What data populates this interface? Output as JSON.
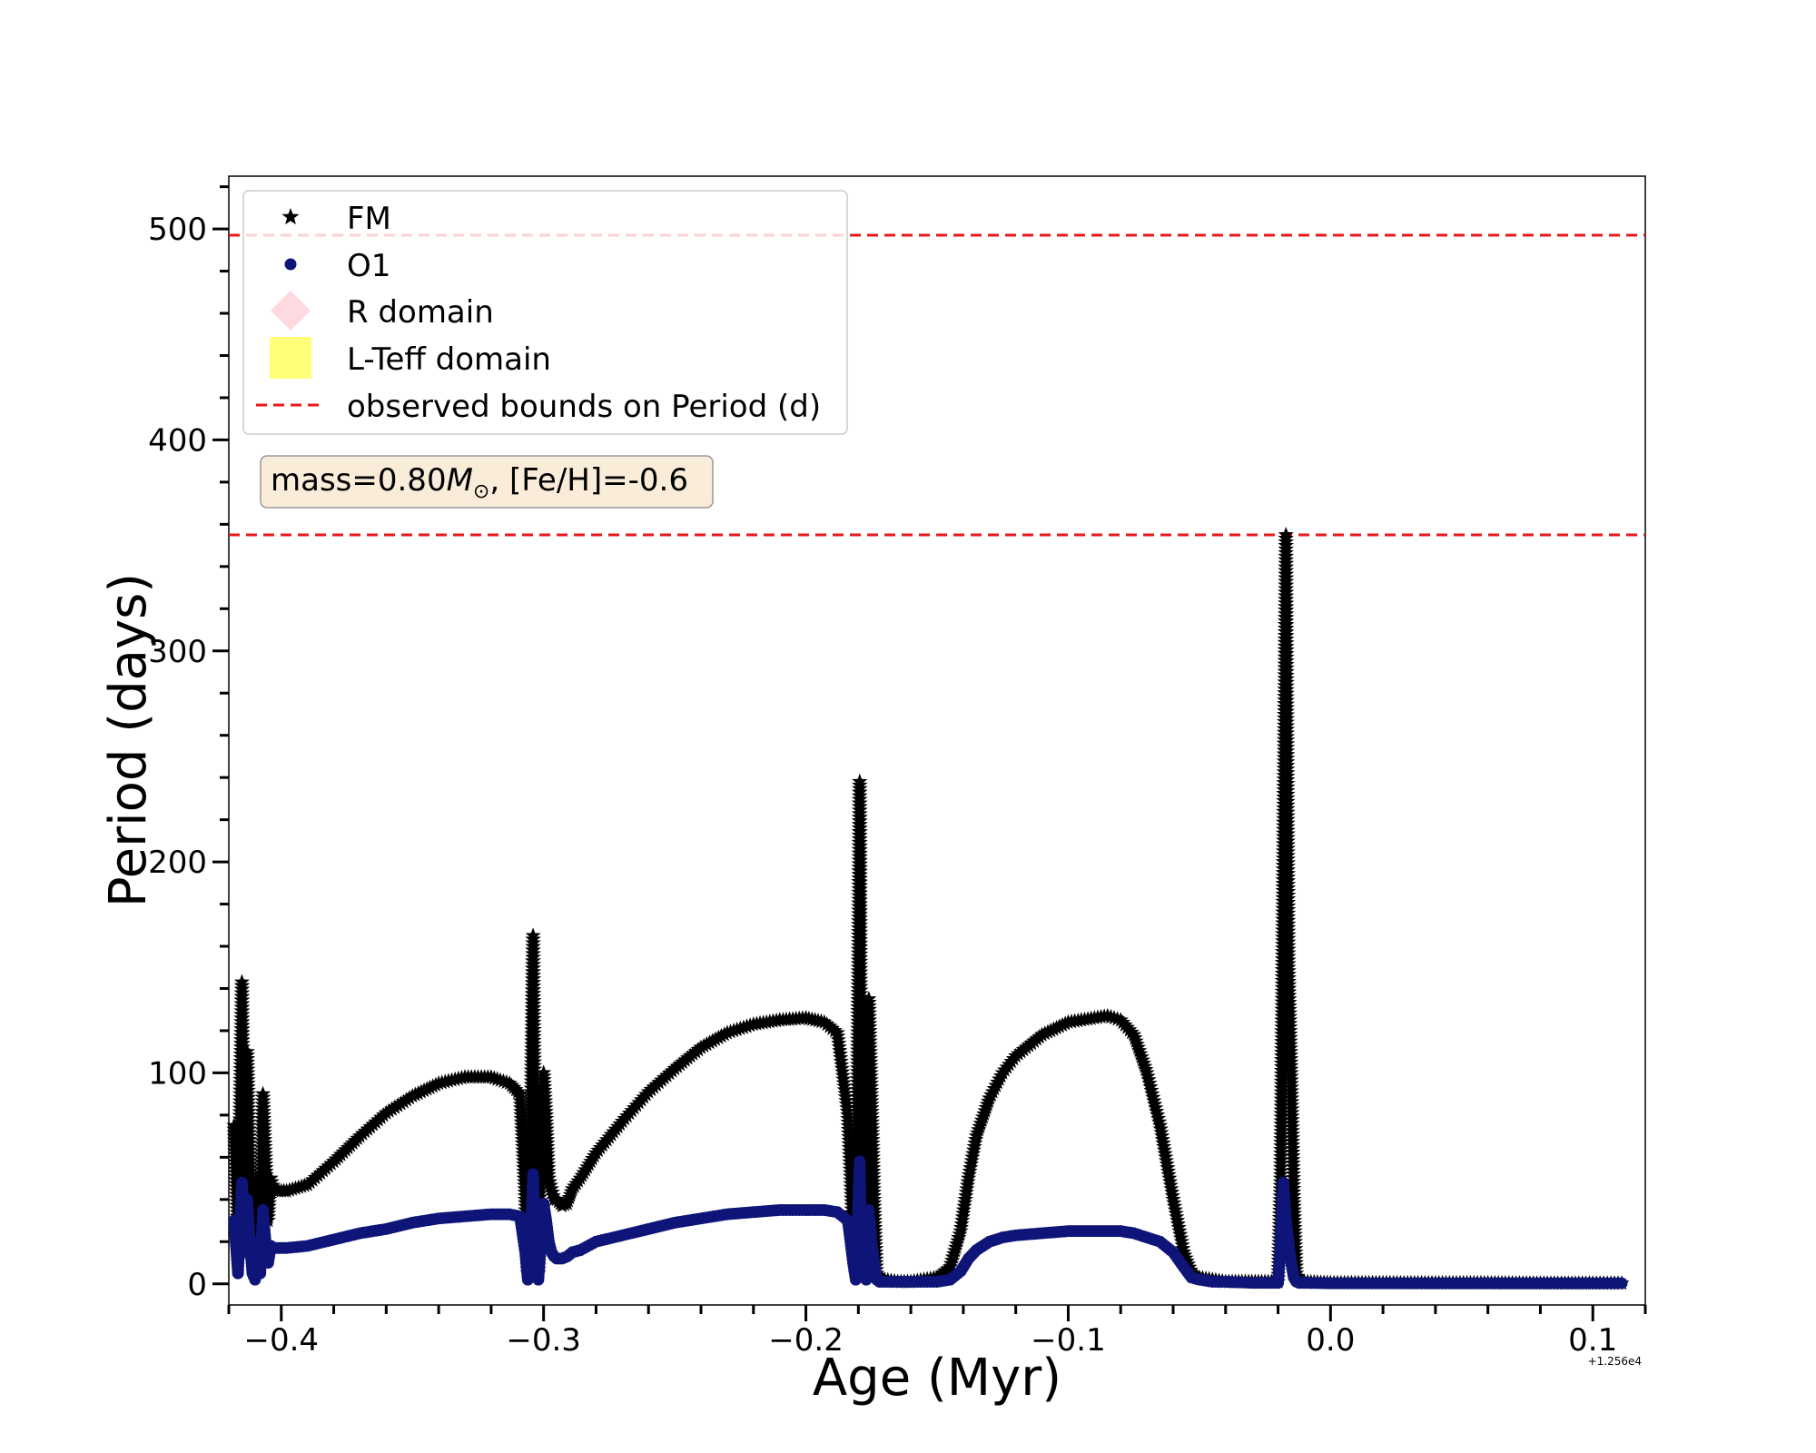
{
  "chart_data": {
    "type": "scatter",
    "xlabel": "Age (Myr)",
    "ylabel": "Period (days)",
    "x_offset_label": "+1.256e4",
    "xlim": [
      -0.42,
      0.12
    ],
    "ylim": [
      -10,
      525
    ],
    "x_ticks": [
      -0.4,
      -0.3,
      -0.2,
      -0.1,
      0.0,
      0.1
    ],
    "x_tick_labels": [
      "−0.4",
      "−0.3",
      "−0.2",
      "−0.1",
      "0.0",
      "0.1"
    ],
    "y_ticks": [
      0,
      100,
      200,
      300,
      400,
      500
    ],
    "y_tick_labels": [
      "0",
      "100",
      "200",
      "300",
      "400",
      "500"
    ],
    "grid": false,
    "legend_position": "top-left",
    "annotation": {
      "text_prefix": "mass=0.80",
      "text_symbol": "M",
      "text_subscript": "⊙",
      "text_suffix": ", [Fe/H]=-0.6"
    },
    "hlines": [
      {
        "name": "observed bounds on Period (d)",
        "y": 355,
        "color": "#e8191b",
        "style": "dashed"
      },
      {
        "name": "observed bounds on Period (d)",
        "y": 497,
        "color": "#e8191b",
        "style": "dashed"
      }
    ],
    "series": [
      {
        "name": "FM",
        "marker": "star",
        "color": "#000000",
        "x": [
          -0.418,
          -0.4165,
          -0.415,
          -0.414,
          -0.413,
          -0.412,
          -0.411,
          -0.41,
          -0.409,
          -0.408,
          -0.407,
          -0.406,
          -0.405,
          -0.404,
          -0.403,
          -0.401,
          -0.398,
          -0.39,
          -0.38,
          -0.37,
          -0.36,
          -0.35,
          -0.34,
          -0.33,
          -0.32,
          -0.313,
          -0.309,
          -0.307,
          -0.306,
          -0.305,
          -0.304,
          -0.3035,
          -0.303,
          -0.302,
          -0.301,
          -0.3,
          -0.299,
          -0.298,
          -0.297,
          -0.296,
          -0.295,
          -0.293,
          -0.291,
          -0.289,
          -0.286,
          -0.28,
          -0.27,
          -0.26,
          -0.25,
          -0.24,
          -0.23,
          -0.22,
          -0.21,
          -0.2,
          -0.193,
          -0.188,
          -0.184,
          -0.182,
          -0.181,
          -0.18,
          -0.1795,
          -0.179,
          -0.178,
          -0.177,
          -0.176,
          -0.175,
          -0.174,
          -0.173,
          -0.172,
          -0.17,
          -0.165,
          -0.16,
          -0.155,
          -0.15,
          -0.145,
          -0.141,
          -0.138,
          -0.135,
          -0.13,
          -0.125,
          -0.12,
          -0.11,
          -0.1,
          -0.09,
          -0.085,
          -0.08,
          -0.075,
          -0.07,
          -0.065,
          -0.06,
          -0.056,
          -0.053,
          -0.05,
          -0.045,
          -0.04,
          -0.03,
          -0.025,
          -0.02,
          -0.019,
          -0.018,
          -0.017,
          -0.016,
          -0.015,
          -0.014,
          -0.013,
          -0.012,
          -0.01,
          0.0,
          0.02,
          0.04,
          0.06,
          0.08,
          0.1,
          0.111
        ],
        "y": [
          75,
          20,
          143,
          40,
          110,
          60,
          30,
          5,
          50,
          20,
          90,
          60,
          30,
          50,
          45,
          44,
          44,
          47,
          58,
          70,
          81,
          89,
          95,
          98,
          98,
          95,
          90,
          40,
          5,
          60,
          165,
          100,
          30,
          5,
          60,
          100,
          80,
          50,
          45,
          40,
          40,
          37,
          38,
          45,
          50,
          62,
          77,
          91,
          102,
          112,
          119,
          123,
          125,
          126,
          124,
          119,
          80,
          20,
          5,
          150,
          238,
          100,
          30,
          5,
          135,
          90,
          40,
          5,
          3,
          2,
          1,
          1,
          2,
          3,
          8,
          25,
          50,
          70,
          88,
          100,
          108,
          118,
          124,
          126,
          127,
          125,
          118,
          100,
          75,
          40,
          15,
          5,
          3,
          2,
          1,
          1,
          1,
          1,
          50,
          200,
          355,
          150,
          100,
          40,
          5,
          2,
          1,
          0.5,
          0.5,
          0.4,
          0.4,
          0.3,
          0.3,
          0.3
        ]
      },
      {
        "name": "O1",
        "marker": "dot",
        "color": "#0e1478",
        "x": [
          -0.418,
          -0.4165,
          -0.415,
          -0.414,
          -0.413,
          -0.412,
          -0.411,
          -0.41,
          -0.409,
          -0.408,
          -0.407,
          -0.406,
          -0.405,
          -0.404,
          -0.403,
          -0.401,
          -0.398,
          -0.39,
          -0.38,
          -0.37,
          -0.36,
          -0.35,
          -0.34,
          -0.33,
          -0.32,
          -0.313,
          -0.309,
          -0.307,
          -0.306,
          -0.305,
          -0.304,
          -0.3035,
          -0.303,
          -0.302,
          -0.301,
          -0.3,
          -0.299,
          -0.298,
          -0.297,
          -0.296,
          -0.295,
          -0.293,
          -0.291,
          -0.289,
          -0.286,
          -0.28,
          -0.27,
          -0.26,
          -0.25,
          -0.24,
          -0.23,
          -0.22,
          -0.21,
          -0.2,
          -0.193,
          -0.188,
          -0.184,
          -0.182,
          -0.181,
          -0.18,
          -0.1795,
          -0.179,
          -0.178,
          -0.177,
          -0.176,
          -0.175,
          -0.174,
          -0.173,
          -0.172,
          -0.17,
          -0.165,
          -0.16,
          -0.155,
          -0.15,
          -0.145,
          -0.141,
          -0.138,
          -0.135,
          -0.13,
          -0.125,
          -0.12,
          -0.11,
          -0.1,
          -0.09,
          -0.085,
          -0.08,
          -0.075,
          -0.07,
          -0.065,
          -0.06,
          -0.056,
          -0.053,
          -0.05,
          -0.045,
          -0.04,
          -0.03,
          -0.025,
          -0.02,
          -0.019,
          -0.018,
          -0.017,
          -0.016,
          -0.015,
          -0.014,
          -0.013,
          -0.012,
          -0.01,
          0.0,
          0.02,
          0.04,
          0.06,
          0.08,
          0.1,
          0.111
        ],
        "y": [
          30,
          5,
          48,
          15,
          40,
          20,
          5,
          2,
          20,
          5,
          35,
          20,
          10,
          18,
          17,
          17,
          17,
          18,
          21,
          24,
          26,
          29,
          31,
          32,
          33,
          33,
          32,
          15,
          2,
          20,
          52,
          35,
          10,
          2,
          20,
          38,
          30,
          20,
          15,
          13,
          12,
          12,
          13,
          15,
          16,
          20,
          23,
          26,
          29,
          31,
          33,
          34,
          35,
          35,
          35,
          34,
          30,
          10,
          2,
          40,
          58,
          30,
          10,
          2,
          35,
          20,
          10,
          2,
          1,
          1,
          1,
          1,
          1,
          1,
          2,
          6,
          12,
          16,
          20,
          22,
          23,
          24,
          25,
          25,
          25,
          25,
          24,
          22,
          20,
          15,
          8,
          3,
          2,
          1,
          1,
          0.5,
          0.5,
          0.5,
          20,
          48,
          30,
          20,
          10,
          3,
          1,
          0.5,
          0.5,
          0.3,
          0.3,
          0.3,
          0.3,
          0.3,
          0.3,
          0.3
        ]
      }
    ],
    "legend": [
      {
        "label": "FM",
        "marker": "star",
        "color": "#000000"
      },
      {
        "label": "O1",
        "marker": "dot",
        "color": "#0e1478"
      },
      {
        "label": "R domain",
        "marker": "diamond",
        "color": "#ffd9e0"
      },
      {
        "label": "L-Teff domain",
        "marker": "square",
        "color": "#ffff7a"
      },
      {
        "label": "observed bounds on Period (d)",
        "marker": "dashed-line",
        "color": "#e8191b"
      }
    ]
  }
}
